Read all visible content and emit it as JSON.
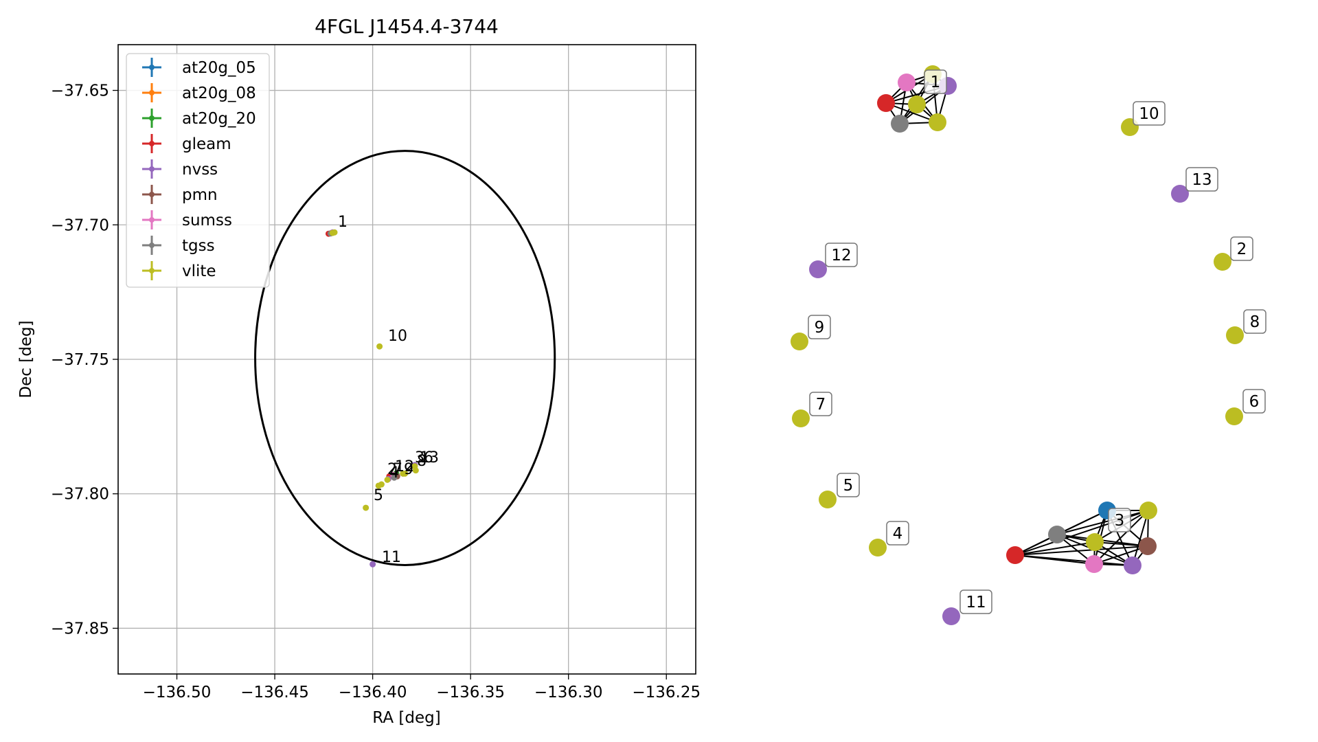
{
  "chart_data": [
    {
      "type": "scatter",
      "title": "4FGL J1454.4-3744",
      "xlabel": "RA [deg]",
      "ylabel": "Dec [deg]",
      "xlim": [
        -136.53,
        -136.235
      ],
      "ylim": [
        -37.867,
        -37.633
      ],
      "xticks": [
        -136.5,
        -136.45,
        -136.4,
        -136.35,
        -136.3,
        -136.25
      ],
      "xtick_labels": [
        "−136.50",
        "−136.45",
        "−136.40",
        "−136.35",
        "−136.30",
        "−136.25"
      ],
      "yticks": [
        -37.65,
        -37.7,
        -37.75,
        -37.8,
        -37.85
      ],
      "ytick_labels": [
        "−37.65",
        "−37.70",
        "−37.75",
        "−37.80",
        "−37.85"
      ],
      "grid": true,
      "legend_position": "top-left",
      "ellipse": {
        "center": [
          -136.3835,
          -37.7495
        ],
        "ra_halfwidth": 0.0765,
        "dec_halfheight": 0.077,
        "color": "#000000"
      },
      "series": [
        {
          "name": "at20g_05",
          "color": "#1f77b4",
          "points": [
            [
              -136.388,
              -37.7925
            ]
          ]
        },
        {
          "name": "at20g_08",
          "color": "#ff7f0e",
          "points": [
            [
              -136.388,
              -37.7925
            ]
          ]
        },
        {
          "name": "at20g_20",
          "color": "#2ca02c",
          "points": [
            [
              -136.388,
              -37.7925
            ]
          ]
        },
        {
          "name": "gleam",
          "color": "#d62728",
          "points": [
            [
              -136.4225,
              -37.7033
            ],
            [
              -136.3915,
              -37.7935
            ]
          ]
        },
        {
          "name": "nvss",
          "color": "#9467bd",
          "points": [
            [
              -136.4205,
              -37.7028
            ],
            [
              -136.3845,
              -37.7925
            ],
            [
              -136.4,
              -37.8262
            ],
            [
              -136.3785,
              -37.7893
            ],
            [
              -136.392,
              -37.7945
            ]
          ]
        },
        {
          "name": "pmn",
          "color": "#8c564b",
          "points": [
            [
              -136.3875,
              -37.7935
            ]
          ]
        },
        {
          "name": "sumss",
          "color": "#e377c2",
          "points": [
            [
              -136.421,
              -37.703
            ],
            [
              -136.3895,
              -37.793
            ]
          ]
        },
        {
          "name": "tgss",
          "color": "#7f7f7f",
          "points": [
            [
              -136.4215,
              -37.7032
            ],
            [
              -136.389,
              -37.794
            ]
          ]
        },
        {
          "name": "vlite",
          "color": "#bcbd22",
          "points": [
            [
              -136.4205,
              -37.703
            ],
            [
              -136.4195,
              -37.7028
            ],
            [
              -136.3965,
              -37.7452
            ],
            [
              -136.4035,
              -37.8052
            ],
            [
              -136.3955,
              -37.7965
            ],
            [
              -136.397,
              -37.797
            ],
            [
              -136.3925,
              -37.7948
            ],
            [
              -136.3835,
              -37.7925
            ],
            [
              -136.378,
              -37.7913
            ],
            [
              -136.3785,
              -37.7898
            ],
            [
              -136.3845,
              -37.7925
            ]
          ]
        }
      ],
      "annotations": [
        "1",
        "10",
        "2",
        "3",
        "4",
        "5",
        "6",
        "7",
        "8",
        "9",
        "11",
        "12",
        "13"
      ]
    },
    {
      "type": "network",
      "nodes": [
        {
          "id": "c1-vlite-a",
          "color": "#bcbd22"
        },
        {
          "id": "c1-sumss",
          "color": "#e377c2"
        },
        {
          "id": "c1-nvss",
          "color": "#9467bd"
        },
        {
          "id": "c1-gleam",
          "color": "#d62728"
        },
        {
          "id": "c1-vlite-b",
          "color": "#bcbd22"
        },
        {
          "id": "c1-tgss",
          "color": "#7f7f7f"
        },
        {
          "id": "c1-vlite-c",
          "color": "#bcbd22"
        },
        {
          "id": "n10",
          "color": "#bcbd22"
        },
        {
          "id": "n13",
          "color": "#9467bd"
        },
        {
          "id": "n2",
          "color": "#bcbd22"
        },
        {
          "id": "n8",
          "color": "#bcbd22"
        },
        {
          "id": "n6",
          "color": "#bcbd22"
        },
        {
          "id": "n12",
          "color": "#9467bd"
        },
        {
          "id": "n9",
          "color": "#bcbd22"
        },
        {
          "id": "n7",
          "color": "#bcbd22"
        },
        {
          "id": "n5",
          "color": "#bcbd22"
        },
        {
          "id": "n4",
          "color": "#bcbd22"
        },
        {
          "id": "n11",
          "color": "#9467bd"
        },
        {
          "id": "c3-at20g",
          "color": "#1f77b4"
        },
        {
          "id": "c3-vlite-a",
          "color": "#bcbd22"
        },
        {
          "id": "c3-tgss",
          "color": "#7f7f7f"
        },
        {
          "id": "c3-vlite-b",
          "color": "#bcbd22"
        },
        {
          "id": "c3-pmn",
          "color": "#8c564b"
        },
        {
          "id": "c3-gleam",
          "color": "#d62728"
        },
        {
          "id": "c3-sumss",
          "color": "#e377c2"
        },
        {
          "id": "c3-nvss",
          "color": "#9467bd"
        }
      ],
      "labels": [
        "1",
        "10",
        "13",
        "2",
        "8",
        "6",
        "12",
        "9",
        "7",
        "5",
        "4",
        "11",
        "3"
      ]
    }
  ]
}
